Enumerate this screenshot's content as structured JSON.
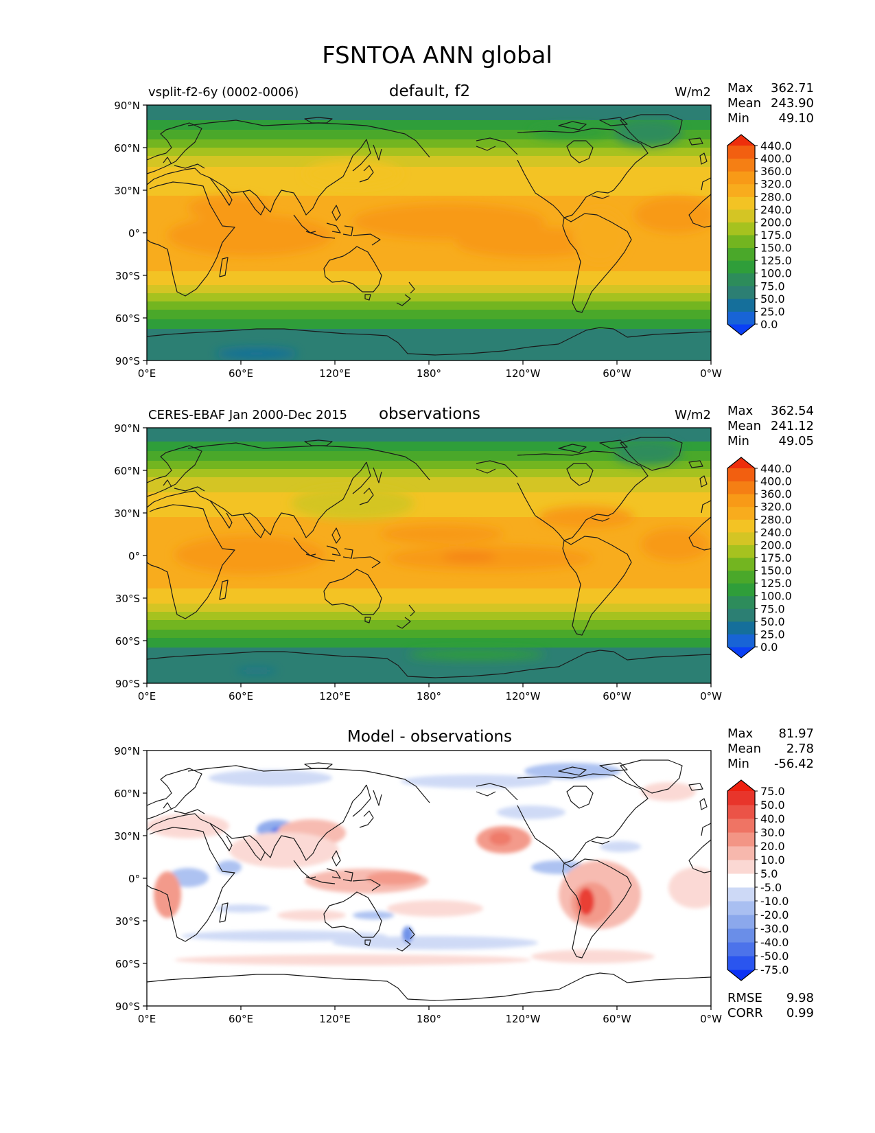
{
  "title": "FSNTOA ANN global",
  "x_ticks": [
    "0°E",
    "60°E",
    "120°E",
    "180°",
    "120°W",
    "60°W",
    "0°W"
  ],
  "y_ticks": [
    "90°N",
    "60°N",
    "30°N",
    "0°",
    "30°S",
    "60°S",
    "90°S"
  ],
  "main_levels": [
    "0.0",
    "25.0",
    "50.0",
    "75.0",
    "100.0",
    "125.0",
    "150.0",
    "175.0",
    "200.0",
    "240.0",
    "280.0",
    "320.0",
    "360.0",
    "400.0",
    "440.0"
  ],
  "main_colors": [
    "#0a40f5",
    "#1864d6",
    "#156f9b",
    "#2c7f73",
    "#2d8c5b",
    "#2f9e3a",
    "#4aa82a",
    "#73b520",
    "#a6c21f",
    "#d4c524",
    "#f3c324",
    "#f8ac1d",
    "#f89a17",
    "#f57f14",
    "#f25f10",
    "#ee2e0c"
  ],
  "diff_levels": [
    "-75.0",
    "-50.0",
    "-40.0",
    "-30.0",
    "-20.0",
    "-10.0",
    "-5.0",
    "5.0",
    "10.0",
    "20.0",
    "30.0",
    "40.0",
    "50.0",
    "75.0"
  ],
  "diff_colors": [
    "#0c32f4",
    "#2a55ef",
    "#4c73ea",
    "#6a8ee8",
    "#8ba8ec",
    "#a9bff1",
    "#cdd9f6",
    "#ffffff",
    "#fbd8d3",
    "#f7b8ad",
    "#f39585",
    "#ef7464",
    "#eb5347",
    "#e8352b",
    "#ee200f"
  ],
  "panels": [
    {
      "left_label": "vsplit-f2-6y (0002-0006)",
      "center_title": "default, f2",
      "units": "W/m2",
      "stats": [
        {
          "label": "Max",
          "value": "362.71"
        },
        {
          "label": "Mean",
          "value": "243.90"
        },
        {
          "label": "Min",
          "value": "49.10"
        }
      ]
    },
    {
      "left_label": "CERES-EBAF Jan 2000-Dec 2015",
      "center_title": "observations",
      "units": "W/m2",
      "stats": [
        {
          "label": "Max",
          "value": "362.54"
        },
        {
          "label": "Mean",
          "value": "241.12"
        },
        {
          "label": "Min",
          "value": "49.05"
        }
      ]
    },
    {
      "left_label": "",
      "center_title": "Model - observations",
      "units": "",
      "stats": [
        {
          "label": "Max",
          "value": "81.97"
        },
        {
          "label": "Mean",
          "value": "2.78"
        },
        {
          "label": "Min",
          "value": "-56.42"
        }
      ],
      "extra_stats": [
        {
          "label": "RMSE",
          "value": "9.98"
        },
        {
          "label": "CORR",
          "value": "0.99"
        }
      ]
    }
  ]
}
